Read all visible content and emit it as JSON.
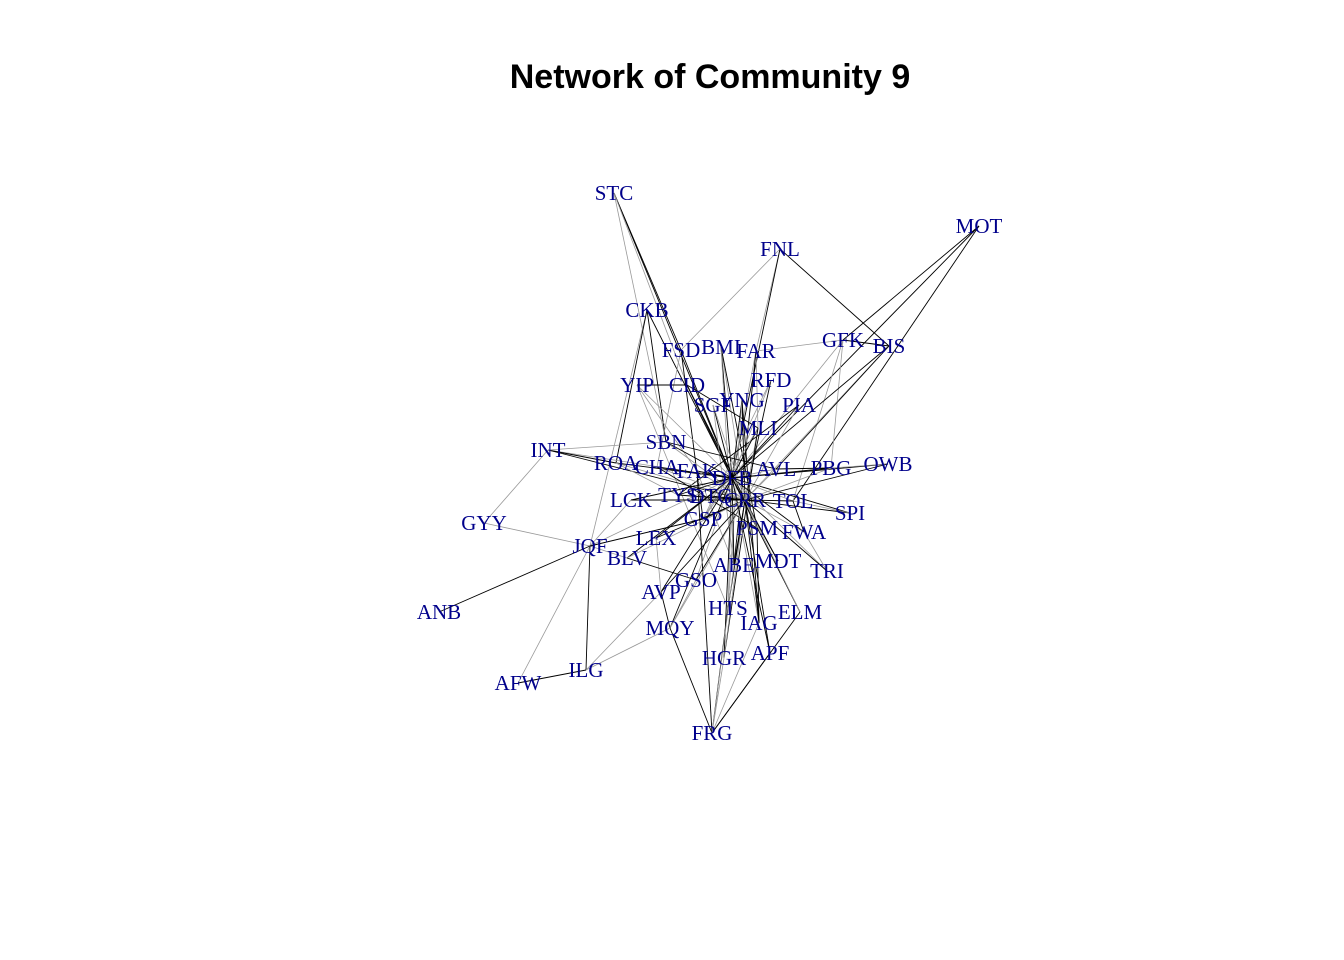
{
  "title": "Network of Community 9",
  "colors": {
    "label": "#00008b",
    "edge_dark": "#000000",
    "edge_light": "#999999"
  },
  "nodes": [
    {
      "id": "STC"
    },
    {
      "id": "MOT"
    },
    {
      "id": "FNL"
    },
    {
      "id": "CKB"
    },
    {
      "id": "GFK"
    },
    {
      "id": "BIS"
    },
    {
      "id": "FSD"
    },
    {
      "id": "BMI"
    },
    {
      "id": "FAR"
    },
    {
      "id": "RFD"
    },
    {
      "id": "YIP"
    },
    {
      "id": "CID"
    },
    {
      "id": "YNG"
    },
    {
      "id": "SGF"
    },
    {
      "id": "PIA"
    },
    {
      "id": "MLI"
    },
    {
      "id": "INT"
    },
    {
      "id": "SBN"
    },
    {
      "id": "ROA"
    },
    {
      "id": "CHA"
    },
    {
      "id": "FAK"
    },
    {
      "id": "DFB"
    },
    {
      "id": "AVL"
    },
    {
      "id": "PBG"
    },
    {
      "id": "OWB"
    },
    {
      "id": "LCK"
    },
    {
      "id": "TYS"
    },
    {
      "id": "DTG"
    },
    {
      "id": "CRR"
    },
    {
      "id": "TOL"
    },
    {
      "id": "SPI"
    },
    {
      "id": "GSP"
    },
    {
      "id": "PSM"
    },
    {
      "id": "FWA"
    },
    {
      "id": "GYY"
    },
    {
      "id": "LEX"
    },
    {
      "id": "JQF"
    },
    {
      "id": "BLV"
    },
    {
      "id": "MDT"
    },
    {
      "id": "ABE"
    },
    {
      "id": "TRI"
    },
    {
      "id": "GSO"
    },
    {
      "id": "AVP"
    },
    {
      "id": "ANB"
    },
    {
      "id": "HTS"
    },
    {
      "id": "ELM"
    },
    {
      "id": "IAG"
    },
    {
      "id": "MQY"
    },
    {
      "id": "APF"
    },
    {
      "id": "HGR"
    },
    {
      "id": "ILG"
    },
    {
      "id": "AFW"
    },
    {
      "id": "FRG"
    }
  ],
  "edges": [
    [
      "STC",
      "FSD"
    ],
    [
      "STC",
      "SBN"
    ],
    [
      "STC",
      "DFB"
    ],
    [
      "STC",
      "CID"
    ],
    [
      "MOT",
      "GFK"
    ],
    [
      "MOT",
      "DFB"
    ],
    [
      "MOT",
      "TOL"
    ],
    [
      "FNL",
      "FSD"
    ],
    [
      "FNL",
      "BIS"
    ],
    [
      "FNL",
      "FAR"
    ],
    [
      "FNL",
      "DFB"
    ],
    [
      "CKB",
      "JQF"
    ],
    [
      "CKB",
      "ROA"
    ],
    [
      "CKB",
      "DFB"
    ],
    [
      "CKB",
      "SBN"
    ],
    [
      "GFK",
      "FAR"
    ],
    [
      "GFK",
      "BIS"
    ],
    [
      "GFK",
      "PBG"
    ],
    [
      "GFK",
      "DFB"
    ],
    [
      "GFK",
      "TOL"
    ],
    [
      "BIS",
      "DFB"
    ],
    [
      "BIS",
      "CRR"
    ],
    [
      "BIS",
      "AVL"
    ],
    [
      "FSD",
      "DFB"
    ],
    [
      "FSD",
      "GSP"
    ],
    [
      "FSD",
      "CHA"
    ],
    [
      "BMI",
      "DFB"
    ],
    [
      "BMI",
      "CRR"
    ],
    [
      "BMI",
      "PSM"
    ],
    [
      "BMI",
      "ABE"
    ],
    [
      "FAR",
      "DFB"
    ],
    [
      "FAR",
      "MLI"
    ],
    [
      "FAR",
      "ABE"
    ],
    [
      "RFD",
      "DFB"
    ],
    [
      "RFD",
      "CRR"
    ],
    [
      "RFD",
      "GSP"
    ],
    [
      "YIP",
      "DFB"
    ],
    [
      "YIP",
      "FAK"
    ],
    [
      "YIP",
      "CID"
    ],
    [
      "YIP",
      "HTS"
    ],
    [
      "CID",
      "DFB"
    ],
    [
      "CID",
      "CRR"
    ],
    [
      "CID",
      "MLI"
    ],
    [
      "YNG",
      "DFB"
    ],
    [
      "YNG",
      "CRR"
    ],
    [
      "YNG",
      "HTS"
    ],
    [
      "YNG",
      "IAG"
    ],
    [
      "SGF",
      "DFB"
    ],
    [
      "SGF",
      "CRR"
    ],
    [
      "SGF",
      "ABE"
    ],
    [
      "PIA",
      "DFB"
    ],
    [
      "PIA",
      "CRR"
    ],
    [
      "PIA",
      "TYS"
    ],
    [
      "MLI",
      "DFB"
    ],
    [
      "MLI",
      "CRR"
    ],
    [
      "MLI",
      "GSP"
    ],
    [
      "MLI",
      "HGR"
    ],
    [
      "INT",
      "DFB"
    ],
    [
      "INT",
      "CRR"
    ],
    [
      "INT",
      "GYY"
    ],
    [
      "INT",
      "ROA"
    ],
    [
      "INT",
      "SBN"
    ],
    [
      "SBN",
      "DFB"
    ],
    [
      "SBN",
      "CRR"
    ],
    [
      "SBN",
      "AVL"
    ],
    [
      "ROA",
      "DFB"
    ],
    [
      "ROA",
      "CRR"
    ],
    [
      "ROA",
      "TYS"
    ],
    [
      "CHA",
      "DFB"
    ],
    [
      "CHA",
      "CRR"
    ],
    [
      "CHA",
      "PSM"
    ],
    [
      "FAK",
      "DFB"
    ],
    [
      "FAK",
      "CRR"
    ],
    [
      "FAK",
      "ABE"
    ],
    [
      "FAK",
      "FRG"
    ],
    [
      "DFB",
      "AVL"
    ],
    [
      "DFB",
      "PBG"
    ],
    [
      "DFB",
      "OWB"
    ],
    [
      "DFB",
      "TOL"
    ],
    [
      "DFB",
      "SPI"
    ],
    [
      "DFB",
      "FWA"
    ],
    [
      "DFB",
      "TRI"
    ],
    [
      "DFB",
      "MDT"
    ],
    [
      "DFB",
      "ELM"
    ],
    [
      "DFB",
      "IAG"
    ],
    [
      "DFB",
      "APF"
    ],
    [
      "DFB",
      "HGR"
    ],
    [
      "DFB",
      "HTS"
    ],
    [
      "DFB",
      "ABE"
    ],
    [
      "DFB",
      "PSM"
    ],
    [
      "DFB",
      "GSP"
    ],
    [
      "DFB",
      "LEX"
    ],
    [
      "DFB",
      "BLV"
    ],
    [
      "DFB",
      "GSO"
    ],
    [
      "DFB",
      "AVP"
    ],
    [
      "DFB",
      "MQY"
    ],
    [
      "DFB",
      "JQF"
    ],
    [
      "DFB",
      "LCK"
    ],
    [
      "DFB",
      "TYS"
    ],
    [
      "AVL",
      "CRR"
    ],
    [
      "AVL",
      "PBG"
    ],
    [
      "PBG",
      "OWB"
    ],
    [
      "PBG",
      "CRR"
    ],
    [
      "OWB",
      "CRR"
    ],
    [
      "LCK",
      "CRR"
    ],
    [
      "LCK",
      "JQF"
    ],
    [
      "TYS",
      "CRR"
    ],
    [
      "DTG",
      "CRR"
    ],
    [
      "DTG",
      "DFB"
    ],
    [
      "CRR",
      "TOL"
    ],
    [
      "CRR",
      "SPI"
    ],
    [
      "CRR",
      "FWA"
    ],
    [
      "CRR",
      "TRI"
    ],
    [
      "CRR",
      "MDT"
    ],
    [
      "CRR",
      "ELM"
    ],
    [
      "CRR",
      "IAG"
    ],
    [
      "CRR",
      "APF"
    ],
    [
      "CRR",
      "HGR"
    ],
    [
      "CRR",
      "HTS"
    ],
    [
      "CRR",
      "ABE"
    ],
    [
      "CRR",
      "PSM"
    ],
    [
      "CRR",
      "GSP"
    ],
    [
      "CRR",
      "LEX"
    ],
    [
      "CRR",
      "BLV"
    ],
    [
      "CRR",
      "GSO"
    ],
    [
      "CRR",
      "AVP"
    ],
    [
      "CRR",
      "MQY"
    ],
    [
      "TOL",
      "SPI"
    ],
    [
      "TOL",
      "FWA"
    ],
    [
      "FWA",
      "TRI"
    ],
    [
      "PSM",
      "IAG"
    ],
    [
      "GYY",
      "JQF"
    ],
    [
      "JQF",
      "ANB"
    ],
    [
      "JQF",
      "AFW"
    ],
    [
      "JQF",
      "ILG"
    ],
    [
      "JQF",
      "BLV"
    ],
    [
      "JQF",
      "GSP"
    ],
    [
      "LEX",
      "AVP"
    ],
    [
      "BLV",
      "GSO"
    ],
    [
      "GSO",
      "MQY"
    ],
    [
      "AVP",
      "MQY"
    ],
    [
      "AVP",
      "ILG"
    ],
    [
      "MQY",
      "FRG"
    ],
    [
      "MQY",
      "ILG"
    ],
    [
      "HTS",
      "FRG"
    ],
    [
      "IAG",
      "FRG"
    ],
    [
      "APF",
      "FRG"
    ],
    [
      "HGR",
      "FRG"
    ],
    [
      "ELM",
      "FRG"
    ],
    [
      "ABE",
      "FRG"
    ],
    [
      "ILG",
      "AFW"
    ]
  ]
}
